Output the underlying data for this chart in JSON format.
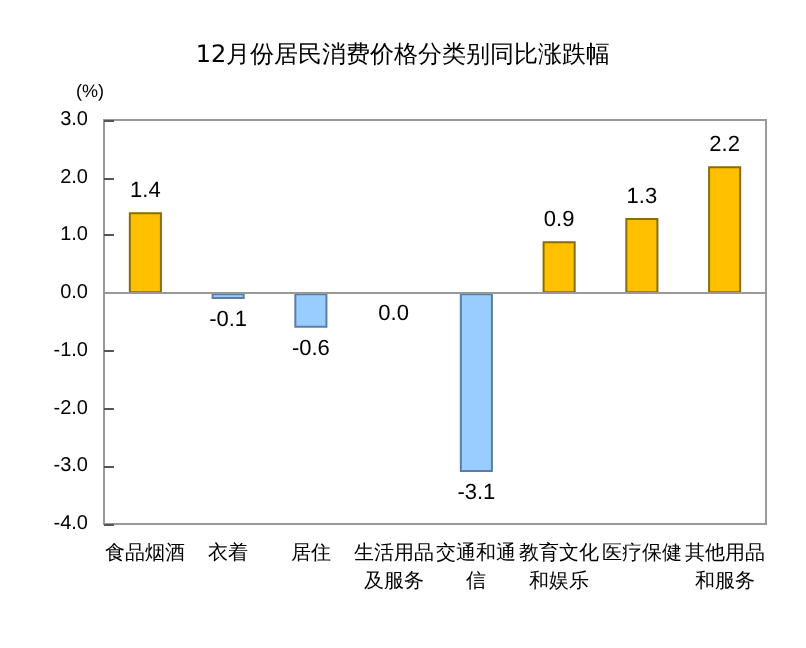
{
  "chart_data": {
    "type": "bar",
    "title": "12月份居民消费价格分类别同比涨跌幅",
    "ylabel": "(%)",
    "categories": [
      "食品烟酒",
      "衣着",
      "居住",
      "生活用品及服务",
      "交通和通信",
      "教育文化和娱乐",
      "医疗保健",
      "其他用品和服务"
    ],
    "values": [
      1.4,
      -0.1,
      -0.6,
      0.0,
      -3.1,
      0.9,
      1.3,
      2.2
    ],
    "value_labels": [
      "1.4",
      "-0.1",
      "-0.6",
      "0.0",
      "-3.1",
      "0.9",
      "1.3",
      "2.2"
    ],
    "colors": [
      "#ffc000",
      "#99ccff",
      "#99ccff",
      "#ffc000",
      "#99ccff",
      "#ffc000",
      "#ffc000",
      "#ffc000"
    ],
    "ylim": [
      -4,
      3
    ],
    "yticks": [
      {
        "value": -4,
        "label": "-4.0"
      },
      {
        "value": -3,
        "label": "-3.0"
      },
      {
        "value": -2,
        "label": "-2.0"
      },
      {
        "value": -1,
        "label": "-1.0"
      },
      {
        "value": 0,
        "label": "0.0"
      },
      {
        "value": 1,
        "label": "1.0"
      },
      {
        "value": 2,
        "label": "2.0"
      },
      {
        "value": 3,
        "label": "3.0"
      }
    ],
    "data_labels": true
  }
}
